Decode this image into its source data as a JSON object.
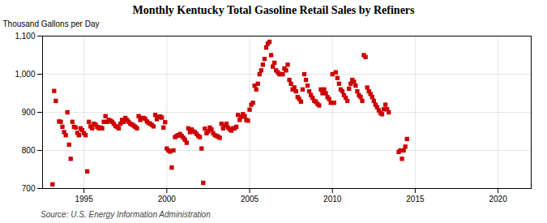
{
  "chart_data": {
    "type": "scatter",
    "title": "Monthly Kentucky Total Gasoline Retail Sales by Refiners",
    "ylabel": "Thousand Gallons per Day",
    "caption": "Source: U.S. Energy Information Administration",
    "color": "#cc0000",
    "marker": "square",
    "grid": true,
    "xlim": [
      1992.5,
      2022.0
    ],
    "xticks": [
      1995,
      2000,
      2005,
      2010,
      2015,
      2020
    ],
    "ylim": [
      700,
      1100
    ],
    "yticks": [
      700,
      800,
      900,
      {
        "value": 1000,
        "label": "1,000"
      },
      {
        "value": 1100,
        "label": "1,100"
      }
    ],
    "x": [
      1993.1,
      1993.2,
      1993.3,
      1993.5,
      1993.6,
      1993.7,
      1993.8,
      1993.9,
      1994.0,
      1994.1,
      1994.2,
      1994.3,
      1994.4,
      1994.5,
      1994.6,
      1994.7,
      1994.8,
      1994.9,
      1995.0,
      1995.1,
      1995.2,
      1995.3,
      1995.4,
      1995.5,
      1995.6,
      1995.7,
      1995.8,
      1995.9,
      1996.0,
      1996.1,
      1996.2,
      1996.3,
      1996.4,
      1996.5,
      1996.6,
      1996.7,
      1996.8,
      1996.9,
      1997.0,
      1997.1,
      1997.2,
      1997.3,
      1997.4,
      1997.5,
      1997.6,
      1997.7,
      1997.8,
      1997.9,
      1998.0,
      1998.1,
      1998.2,
      1998.3,
      1998.4,
      1998.5,
      1998.6,
      1998.7,
      1998.8,
      1998.9,
      1999.0,
      1999.1,
      1999.2,
      1999.3,
      1999.4,
      1999.5,
      1999.6,
      1999.7,
      1999.8,
      1999.9,
      2000.0,
      2000.1,
      2000.2,
      2000.3,
      2000.4,
      2000.5,
      2000.6,
      2000.7,
      2000.8,
      2000.9,
      2001.0,
      2001.1,
      2001.2,
      2001.3,
      2001.4,
      2001.5,
      2001.6,
      2001.7,
      2001.8,
      2001.9,
      2002.0,
      2002.1,
      2002.2,
      2002.3,
      2002.4,
      2002.5,
      2002.6,
      2002.7,
      2002.8,
      2002.9,
      2003.0,
      2003.1,
      2003.2,
      2003.3,
      2003.4,
      2003.5,
      2003.6,
      2003.7,
      2003.8,
      2003.9,
      2004.0,
      2004.1,
      2004.2,
      2004.3,
      2004.4,
      2004.5,
      2004.6,
      2004.7,
      2004.8,
      2004.9,
      2005.0,
      2005.1,
      2005.2,
      2005.3,
      2005.4,
      2005.5,
      2005.6,
      2005.7,
      2005.8,
      2005.9,
      2006.0,
      2006.1,
      2006.2,
      2006.3,
      2006.4,
      2006.5,
      2006.6,
      2006.7,
      2006.8,
      2006.9,
      2007.0,
      2007.1,
      2007.2,
      2007.3,
      2007.4,
      2007.5,
      2007.6,
      2007.7,
      2007.8,
      2007.9,
      2008.0,
      2008.1,
      2008.2,
      2008.3,
      2008.4,
      2008.5,
      2008.6,
      2008.7,
      2008.8,
      2008.9,
      2009.0,
      2009.1,
      2009.2,
      2009.3,
      2009.4,
      2009.5,
      2009.6,
      2009.7,
      2009.8,
      2009.9,
      2010.0,
      2010.1,
      2010.2,
      2010.3,
      2010.4,
      2010.5,
      2010.6,
      2010.7,
      2010.8,
      2010.9,
      2011.0,
      2011.1,
      2011.2,
      2011.3,
      2011.4,
      2011.5,
      2011.6,
      2011.7,
      2011.8,
      2011.9,
      2012.0,
      2012.1,
      2012.2,
      2012.3,
      2012.4,
      2012.5,
      2012.6,
      2012.7,
      2012.8,
      2012.9,
      2013.0,
      2013.1,
      2013.2,
      2013.3,
      2013.4,
      2014.0,
      2014.1,
      2014.2,
      2014.3,
      2014.4,
      2014.5
    ],
    "values": [
      711,
      956,
      930,
      876,
      875,
      862,
      848,
      840,
      900,
      815,
      778,
      875,
      862,
      860,
      846,
      840,
      858,
      853,
      845,
      840,
      745,
      875,
      863,
      858,
      870,
      868,
      862,
      858,
      860,
      858,
      875,
      890,
      875,
      880,
      878,
      875,
      870,
      864,
      862,
      858,
      870,
      880,
      875,
      885,
      880,
      875,
      870,
      868,
      865,
      862,
      858,
      890,
      880,
      885,
      885,
      883,
      876,
      872,
      870,
      867,
      863,
      893,
      882,
      888,
      889,
      886,
      860,
      874,
      805,
      800,
      797,
      755,
      800,
      835,
      838,
      840,
      843,
      838,
      833,
      828,
      820,
      858,
      848,
      855,
      850,
      848,
      843,
      838,
      835,
      805,
      715,
      857,
      845,
      850,
      860,
      855,
      845,
      840,
      838,
      836,
      833,
      870,
      858,
      865,
      870,
      860,
      855,
      852,
      858,
      858,
      862,
      893,
      880,
      888,
      895,
      890,
      880,
      878,
      907,
      920,
      925,
      970,
      960,
      975,
      1000,
      1010,
      1025,
      1040,
      1070,
      1080,
      1085,
      1050,
      1020,
      1030,
      1010,
      1005,
      1000,
      1000,
      1000,
      1015,
      1010,
      1025,
      985,
      975,
      960,
      965,
      955,
      940,
      935,
      928,
      960,
      1000,
      985,
      970,
      955,
      945,
      938,
      930,
      928,
      922,
      918,
      960,
      950,
      960,
      950,
      940,
      935,
      925,
      1000,
      925,
      1005,
      990,
      975,
      960,
      955,
      945,
      938,
      930,
      962,
      975,
      985,
      980,
      970,
      955,
      945,
      940,
      930,
      1050,
      1045,
      965,
      955,
      948,
      940,
      930,
      920,
      913,
      905,
      898,
      895,
      908,
      920,
      908,
      900,
      796,
      800,
      778,
      800,
      810,
      830
    ]
  }
}
